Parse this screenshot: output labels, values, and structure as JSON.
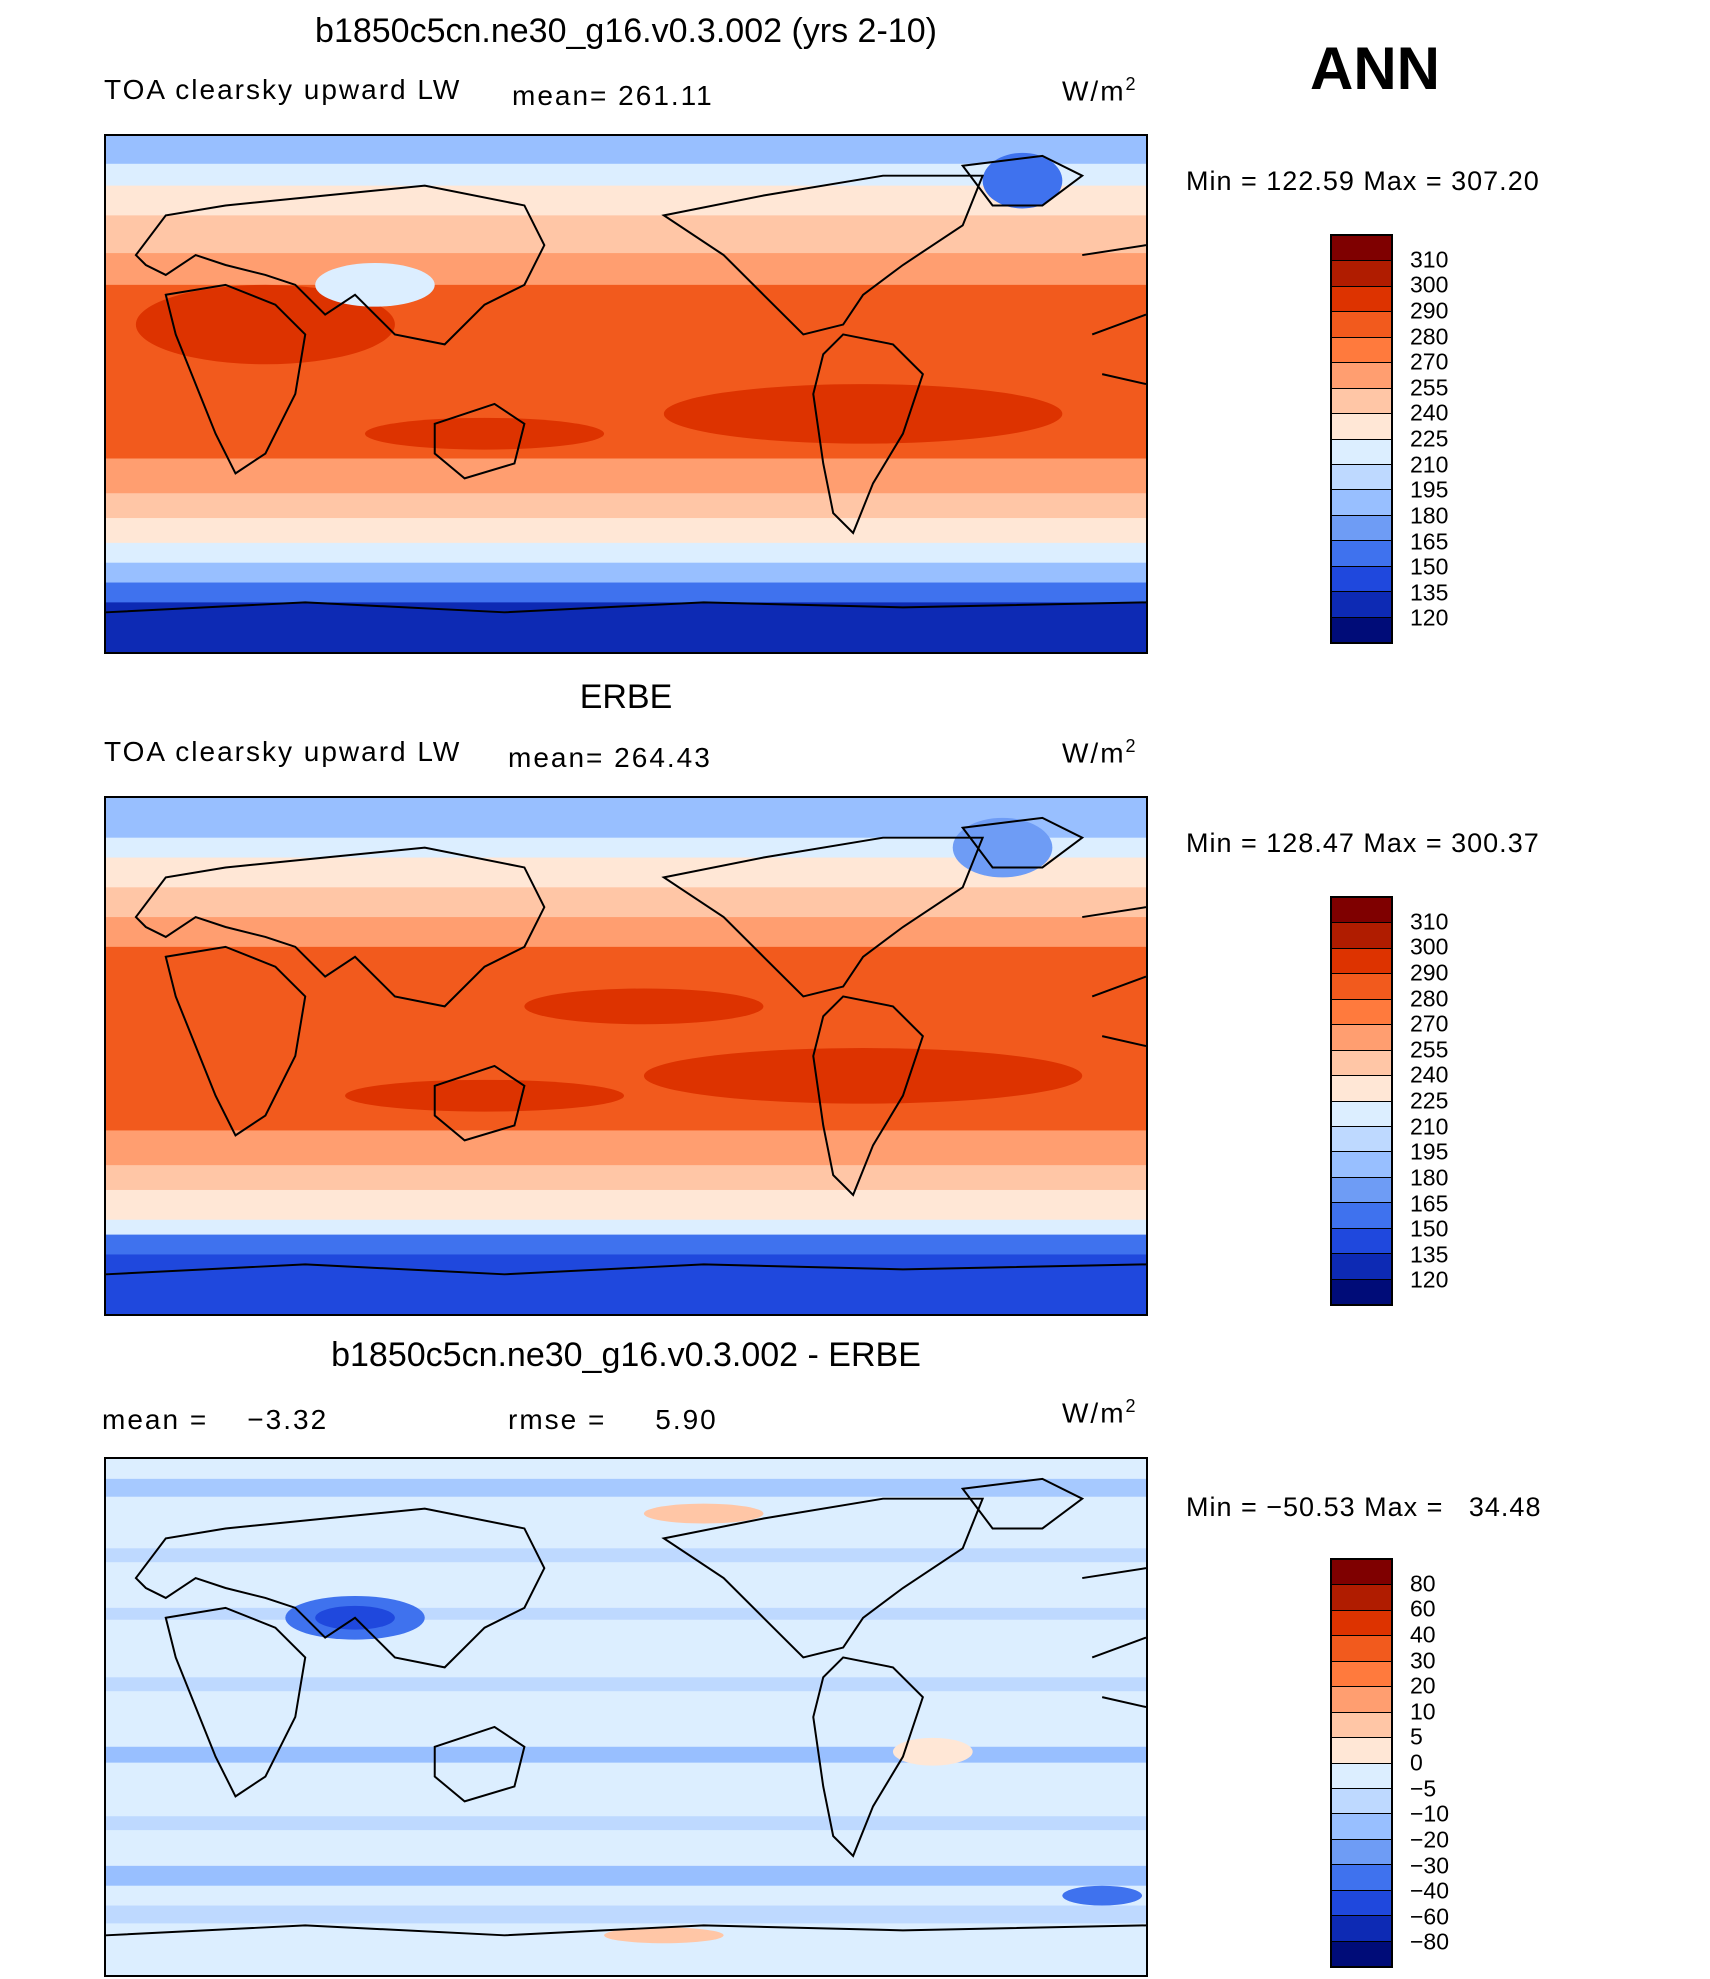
{
  "season": "ANN",
  "panels": [
    {
      "title": "b1850c5cn.ne30_g16.v0.3.002 (yrs 2-10)",
      "left_label": "TOA clearsky upward LW",
      "mid_label": "mean= 261.11",
      "units": "W/m",
      "units_sup": "2",
      "minmax": "Min = 122.59 Max = 307.20"
    },
    {
      "title": "ERBE",
      "left_label": "TOA clearsky upward LW",
      "mid_label": "mean= 264.43",
      "units": "W/m",
      "units_sup": "2",
      "minmax": "Min = 128.47 Max = 300.37"
    },
    {
      "title": "b1850c5cn.ne30_g16.v0.3.002 - ERBE",
      "left_label": "mean =    −3.32",
      "mid_label": "rmse =     5.90",
      "units": "W/m",
      "units_sup": "2",
      "minmax": "Min = −50.53 Max =   34.48"
    }
  ],
  "colorbars": {
    "abs": {
      "labels": [
        "310",
        "300",
        "290",
        "280",
        "270",
        "255",
        "240",
        "225",
        "210",
        "195",
        "180",
        "165",
        "150",
        "135",
        "120"
      ],
      "colors": [
        "#7f0000",
        "#b01c00",
        "#dd3300",
        "#f25a1d",
        "#ff7a3d",
        "#ff9e70",
        "#ffc6a6",
        "#ffe7d6",
        "#dceeff",
        "#bed9ff",
        "#98bfff",
        "#6e9cf5",
        "#3f72ee",
        "#1f48dd",
        "#0d2ab4",
        "#000c78"
      ]
    },
    "diff": {
      "labels": [
        "80",
        "60",
        "40",
        "30",
        "20",
        "10",
        "5",
        "0",
        "−5",
        "−10",
        "−20",
        "−30",
        "−40",
        "−60",
        "−80"
      ],
      "colors": [
        "#7f0000",
        "#b01c00",
        "#dd3300",
        "#f25a1d",
        "#ff7a3d",
        "#ff9e70",
        "#ffc6a6",
        "#ffe7d6",
        "#dceeff",
        "#bed9ff",
        "#98bfff",
        "#6e9cf5",
        "#3f72ee",
        "#1f48dd",
        "#0d2ab4",
        "#000c78"
      ]
    }
  },
  "map_colors": {
    "polar_blue_dark": "#0d2ab4",
    "polar_blue": "#3f72ee",
    "midlat_blue": "#98bfff",
    "light_blue": "#dceeff",
    "cream": "#ffe7d6",
    "peach": "#ffc6a6",
    "salmon": "#ff9e70",
    "orange": "#f25a1d",
    "red_orange": "#dd3300",
    "diff_base": "#dceeff",
    "diff_blue": "#98bfff",
    "diff_warm": "#ffc6a6"
  }
}
